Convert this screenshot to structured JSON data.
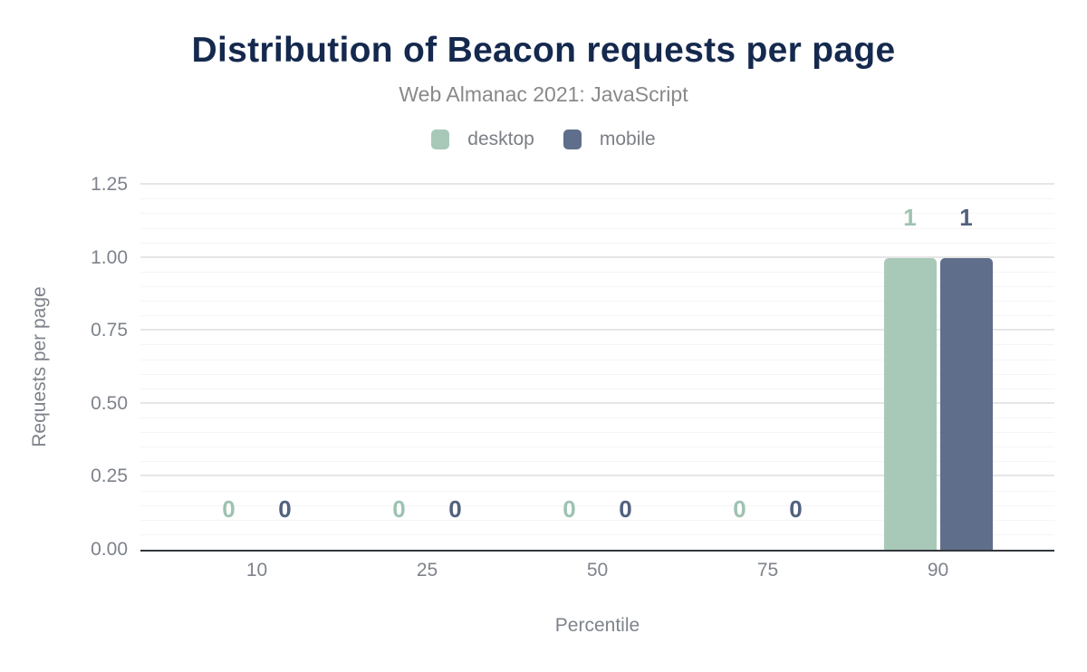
{
  "chart_data": {
    "type": "bar",
    "title": "Distribution of Beacon requests per page",
    "subtitle": "Web Almanac 2021: JavaScript",
    "xlabel": "Percentile",
    "ylabel": "Requests per page",
    "categories": [
      "10",
      "25",
      "50",
      "75",
      "90"
    ],
    "series": [
      {
        "name": "desktop",
        "color": "#a8c9b8",
        "label_color": "#9dc3b1",
        "values": [
          0,
          0,
          0,
          0,
          1
        ]
      },
      {
        "name": "mobile",
        "color": "#5f6e8b",
        "label_color": "#51617e",
        "values": [
          0,
          0,
          0,
          0,
          1
        ]
      }
    ],
    "data_labels": [
      "0",
      "0",
      "0",
      "0",
      "1"
    ],
    "ylim": [
      0,
      1.3
    ],
    "yticks": [
      0,
      0.25,
      0.5,
      0.75,
      1.0,
      1.25
    ],
    "ytick_labels": [
      "0.00",
      "0.25",
      "0.50",
      "0.75",
      "1.00",
      "1.25"
    ],
    "minor_grid_step": 0.05,
    "grid": true,
    "legend_position": "top"
  },
  "colors": {
    "title": "#15294e",
    "subtitle": "#898989",
    "axis_text": "#7e838b",
    "axis_line": "#33373d",
    "grid_major": "#e6e6e6",
    "grid_minor": "#f5f5f5",
    "background": "#ffffff"
  }
}
